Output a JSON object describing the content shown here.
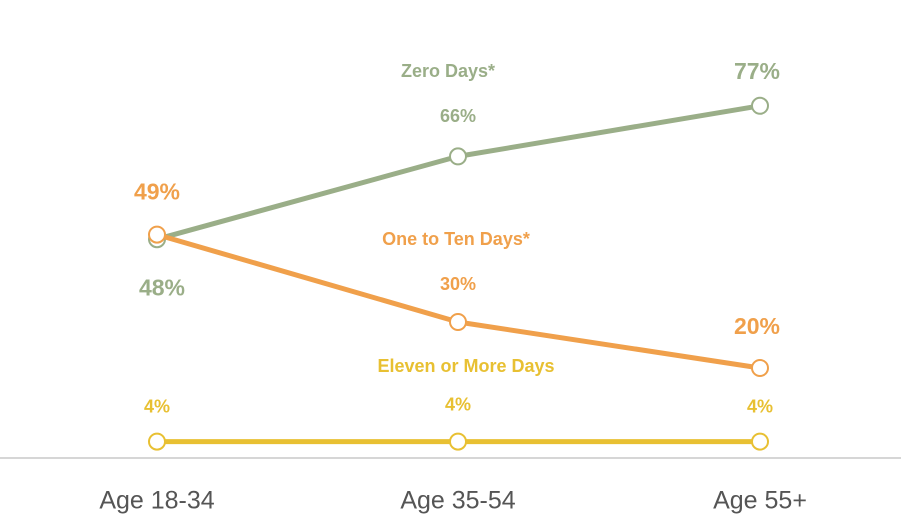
{
  "chart_data": {
    "type": "line",
    "categories": [
      "Age 18-34",
      "Age 35-54",
      "Age 55+"
    ],
    "series": [
      {
        "name": "Zero Days*",
        "color": "#9aae88",
        "values": [
          48,
          66,
          77
        ],
        "value_labels": [
          "48%",
          "66%",
          "77%"
        ]
      },
      {
        "name": "One to Ten Days*",
        "color": "#f0a04b",
        "values": [
          49,
          30,
          20
        ],
        "value_labels": [
          "49%",
          "30%",
          "20%"
        ]
      },
      {
        "name": "Eleven or More Days",
        "color": "#e8c032",
        "values": [
          4,
          4,
          4
        ],
        "value_labels": [
          "4%",
          "4%",
          "4%"
        ]
      }
    ],
    "ylim": [
      0,
      100
    ]
  }
}
